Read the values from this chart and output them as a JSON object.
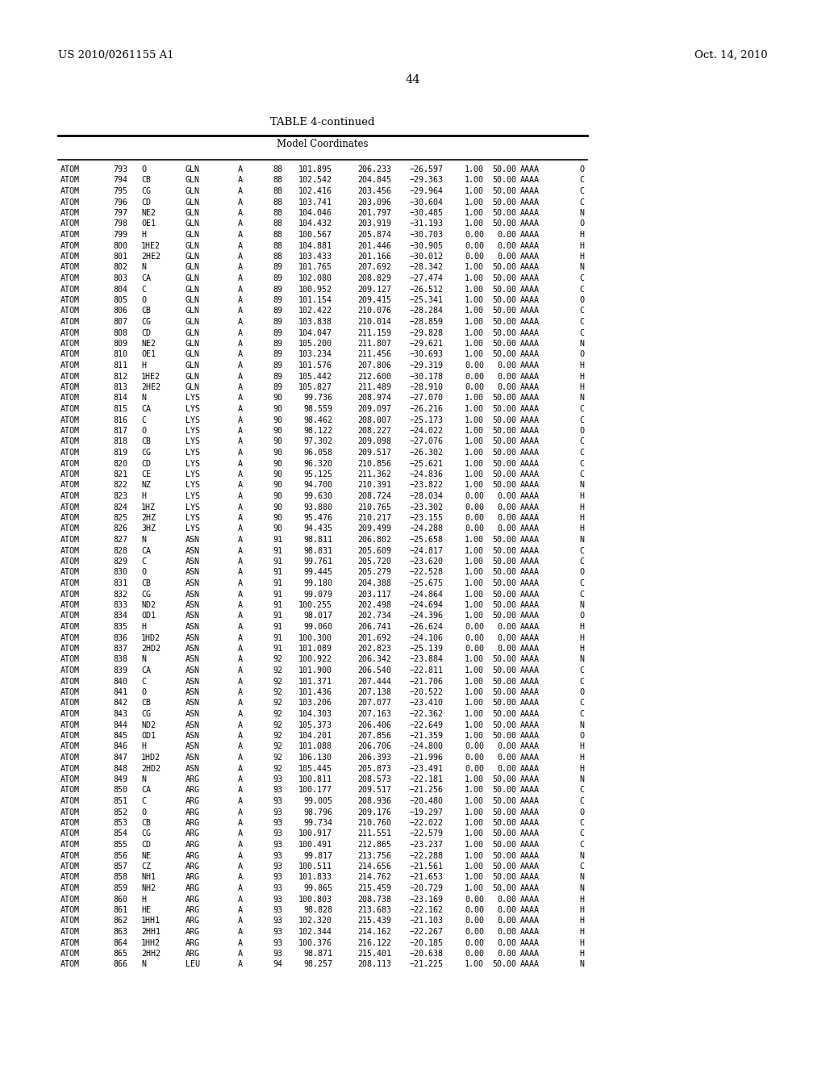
{
  "header_left": "US 2010/0261155 A1",
  "header_right": "Oct. 14, 2010",
  "page_number": "44",
  "table_title": "TABLE 4-continued",
  "table_subtitle": "Model Coordinates",
  "rows": [
    [
      "ATOM",
      "793",
      "O",
      "GLN",
      "A",
      "88",
      "101.895",
      "206.233",
      "−26.597",
      "1.00",
      "50.00",
      "AAAA",
      "O"
    ],
    [
      "ATOM",
      "794",
      "CB",
      "GLN",
      "A",
      "88",
      "102.542",
      "204.845",
      "−29.363",
      "1.00",
      "50.00",
      "AAAA",
      "C"
    ],
    [
      "ATOM",
      "795",
      "CG",
      "GLN",
      "A",
      "88",
      "102.416",
      "203.456",
      "−29.964",
      "1.00",
      "50.00",
      "AAAA",
      "C"
    ],
    [
      "ATOM",
      "796",
      "CD",
      "GLN",
      "A",
      "88",
      "103.741",
      "203.096",
      "−30.604",
      "1.00",
      "50.00",
      "AAAA",
      "C"
    ],
    [
      "ATOM",
      "797",
      "NE2",
      "GLN",
      "A",
      "88",
      "104.046",
      "201.797",
      "−30.485",
      "1.00",
      "50.00",
      "AAAA",
      "N"
    ],
    [
      "ATOM",
      "798",
      "OE1",
      "GLN",
      "A",
      "88",
      "104.432",
      "203.919",
      "−31.193",
      "1.00",
      "50.00",
      "AAAA",
      "O"
    ],
    [
      "ATOM",
      "799",
      "H",
      "GLN",
      "A",
      "88",
      "100.567",
      "205.874",
      "−30.703",
      "0.00",
      "0.00",
      "AAAA",
      "H"
    ],
    [
      "ATOM",
      "800",
      "1HE2",
      "GLN",
      "A",
      "88",
      "104.881",
      "201.446",
      "−30.905",
      "0.00",
      "0.00",
      "AAAA",
      "H"
    ],
    [
      "ATOM",
      "801",
      "2HE2",
      "GLN",
      "A",
      "88",
      "103.433",
      "201.166",
      "−30.012",
      "0.00",
      "0.00",
      "AAAA",
      "H"
    ],
    [
      "ATOM",
      "802",
      "N",
      "GLN",
      "A",
      "89",
      "101.765",
      "207.692",
      "−28.342",
      "1.00",
      "50.00",
      "AAAA",
      "N"
    ],
    [
      "ATOM",
      "803",
      "CA",
      "GLN",
      "A",
      "89",
      "102.080",
      "208.829",
      "−27.474",
      "1.00",
      "50.00",
      "AAAA",
      "C"
    ],
    [
      "ATOM",
      "804",
      "C",
      "GLN",
      "A",
      "89",
      "100.952",
      "209.127",
      "−26.512",
      "1.00",
      "50.00",
      "AAAA",
      "C"
    ],
    [
      "ATOM",
      "805",
      "O",
      "GLN",
      "A",
      "89",
      "101.154",
      "209.415",
      "−25.341",
      "1.00",
      "50.00",
      "AAAA",
      "O"
    ],
    [
      "ATOM",
      "806",
      "CB",
      "GLN",
      "A",
      "89",
      "102.422",
      "210.076",
      "−28.284",
      "1.00",
      "50.00",
      "AAAA",
      "C"
    ],
    [
      "ATOM",
      "807",
      "CG",
      "GLN",
      "A",
      "89",
      "103.838",
      "210.014",
      "−28.859",
      "1.00",
      "50.00",
      "AAAA",
      "C"
    ],
    [
      "ATOM",
      "808",
      "CD",
      "GLN",
      "A",
      "89",
      "104.047",
      "211.159",
      "−29.828",
      "1.00",
      "50.00",
      "AAAA",
      "C"
    ],
    [
      "ATOM",
      "809",
      "NE2",
      "GLN",
      "A",
      "89",
      "105.200",
      "211.807",
      "−29.621",
      "1.00",
      "50.00",
      "AAAA",
      "N"
    ],
    [
      "ATOM",
      "810",
      "OE1",
      "GLN",
      "A",
      "89",
      "103.234",
      "211.456",
      "−30.693",
      "1.00",
      "50.00",
      "AAAA",
      "O"
    ],
    [
      "ATOM",
      "811",
      "H",
      "GLN",
      "A",
      "89",
      "101.576",
      "207.806",
      "−29.319",
      "0.00",
      "0.00",
      "AAAA",
      "H"
    ],
    [
      "ATOM",
      "812",
      "1HE2",
      "GLN",
      "A",
      "89",
      "105.442",
      "212.600",
      "−30.178",
      "0.00",
      "0.00",
      "AAAA",
      "H"
    ],
    [
      "ATOM",
      "813",
      "2HE2",
      "GLN",
      "A",
      "89",
      "105.827",
      "211.489",
      "−28.910",
      "0.00",
      "0.00",
      "AAAA",
      "H"
    ],
    [
      "ATOM",
      "814",
      "N",
      "LYS",
      "A",
      "90",
      "99.736",
      "208.974",
      "−27.070",
      "1.00",
      "50.00",
      "AAAA",
      "N"
    ],
    [
      "ATOM",
      "815",
      "CA",
      "LYS",
      "A",
      "90",
      "98.559",
      "209.097",
      "−26.216",
      "1.00",
      "50.00",
      "AAAA",
      "C"
    ],
    [
      "ATOM",
      "816",
      "C",
      "LYS",
      "A",
      "90",
      "98.462",
      "208.007",
      "−25.173",
      "1.00",
      "50.00",
      "AAAA",
      "C"
    ],
    [
      "ATOM",
      "817",
      "O",
      "LYS",
      "A",
      "90",
      "98.122",
      "208.227",
      "−24.022",
      "1.00",
      "50.00",
      "AAAA",
      "O"
    ],
    [
      "ATOM",
      "818",
      "CB",
      "LYS",
      "A",
      "90",
      "97.302",
      "209.098",
      "−27.076",
      "1.00",
      "50.00",
      "AAAA",
      "C"
    ],
    [
      "ATOM",
      "819",
      "CG",
      "LYS",
      "A",
      "90",
      "96.058",
      "209.517",
      "−26.302",
      "1.00",
      "50.00",
      "AAAA",
      "C"
    ],
    [
      "ATOM",
      "820",
      "CD",
      "LYS",
      "A",
      "90",
      "96.320",
      "210.856",
      "−25.621",
      "1.00",
      "50.00",
      "AAAA",
      "C"
    ],
    [
      "ATOM",
      "821",
      "CE",
      "LYS",
      "A",
      "90",
      "95.125",
      "211.362",
      "−24.836",
      "1.00",
      "50.00",
      "AAAA",
      "C"
    ],
    [
      "ATOM",
      "822",
      "NZ",
      "LYS",
      "A",
      "90",
      "94.700",
      "210.391",
      "−23.822",
      "1.00",
      "50.00",
      "AAAA",
      "N"
    ],
    [
      "ATOM",
      "823",
      "H",
      "LYS",
      "A",
      "90",
      "99.630",
      "208.724",
      "−28.034",
      "0.00",
      "0.00",
      "AAAA",
      "H"
    ],
    [
      "ATOM",
      "824",
      "1HZ",
      "LYS",
      "A",
      "90",
      "93.880",
      "210.765",
      "−23.302",
      "0.00",
      "0.00",
      "AAAA",
      "H"
    ],
    [
      "ATOM",
      "825",
      "2HZ",
      "LYS",
      "A",
      "90",
      "95.476",
      "210.217",
      "−23.155",
      "0.00",
      "0.00",
      "AAAA",
      "H"
    ],
    [
      "ATOM",
      "826",
      "3HZ",
      "LYS",
      "A",
      "90",
      "94.435",
      "209.499",
      "−24.288",
      "0.00",
      "0.00",
      "AAAA",
      "H"
    ],
    [
      "ATOM",
      "827",
      "N",
      "ASN",
      "A",
      "91",
      "98.811",
      "206.802",
      "−25.658",
      "1.00",
      "50.00",
      "AAAA",
      "N"
    ],
    [
      "ATOM",
      "828",
      "CA",
      "ASN",
      "A",
      "91",
      "98.831",
      "205.609",
      "−24.817",
      "1.00",
      "50.00",
      "AAAA",
      "C"
    ],
    [
      "ATOM",
      "829",
      "C",
      "ASN",
      "A",
      "91",
      "99.761",
      "205.720",
      "−23.620",
      "1.00",
      "50.00",
      "AAAA",
      "C"
    ],
    [
      "ATOM",
      "830",
      "O",
      "ASN",
      "A",
      "91",
      "99.445",
      "205.279",
      "−22.528",
      "1.00",
      "50.00",
      "AAAA",
      "O"
    ],
    [
      "ATOM",
      "831",
      "CB",
      "ASN",
      "A",
      "91",
      "99.180",
      "204.388",
      "−25.675",
      "1.00",
      "50.00",
      "AAAA",
      "C"
    ],
    [
      "ATOM",
      "832",
      "CG",
      "ASN",
      "A",
      "91",
      "99.079",
      "203.117",
      "−24.864",
      "1.00",
      "50.00",
      "AAAA",
      "C"
    ],
    [
      "ATOM",
      "833",
      "ND2",
      "ASN",
      "A",
      "91",
      "100.255",
      "202.498",
      "−24.694",
      "1.00",
      "50.00",
      "AAAA",
      "N"
    ],
    [
      "ATOM",
      "834",
      "OD1",
      "ASN",
      "A",
      "91",
      "98.017",
      "202.734",
      "−24.396",
      "1.00",
      "50.00",
      "AAAA",
      "O"
    ],
    [
      "ATOM",
      "835",
      "H",
      "ASN",
      "A",
      "91",
      "99.060",
      "206.741",
      "−26.624",
      "0.00",
      "0.00",
      "AAAA",
      "H"
    ],
    [
      "ATOM",
      "836",
      "1HD2",
      "ASN",
      "A",
      "91",
      "100.300",
      "201.692",
      "−24.106",
      "0.00",
      "0.00",
      "AAAA",
      "H"
    ],
    [
      "ATOM",
      "837",
      "2HD2",
      "ASN",
      "A",
      "91",
      "101.089",
      "202.823",
      "−25.139",
      "0.00",
      "0.00",
      "AAAA",
      "H"
    ],
    [
      "ATOM",
      "838",
      "N",
      "ASN",
      "A",
      "92",
      "100.922",
      "206.342",
      "−23.884",
      "1.00",
      "50.00",
      "AAAA",
      "N"
    ],
    [
      "ATOM",
      "839",
      "CA",
      "ASN",
      "A",
      "92",
      "101.900",
      "206.540",
      "−22.811",
      "1.00",
      "50.00",
      "AAAA",
      "C"
    ],
    [
      "ATOM",
      "840",
      "C",
      "ASN",
      "A",
      "92",
      "101.371",
      "207.444",
      "−21.706",
      "1.00",
      "50.00",
      "AAAA",
      "C"
    ],
    [
      "ATOM",
      "841",
      "O",
      "ASN",
      "A",
      "92",
      "101.436",
      "207.138",
      "−20.522",
      "1.00",
      "50.00",
      "AAAA",
      "O"
    ],
    [
      "ATOM",
      "842",
      "CB",
      "ASN",
      "A",
      "92",
      "103.206",
      "207.077",
      "−23.410",
      "1.00",
      "50.00",
      "AAAA",
      "C"
    ],
    [
      "ATOM",
      "843",
      "CG",
      "ASN",
      "A",
      "92",
      "104.303",
      "207.163",
      "−22.362",
      "1.00",
      "50.00",
      "AAAA",
      "C"
    ],
    [
      "ATOM",
      "844",
      "ND2",
      "ASN",
      "A",
      "92",
      "105.373",
      "206.406",
      "−22.649",
      "1.00",
      "50.00",
      "AAAA",
      "N"
    ],
    [
      "ATOM",
      "845",
      "OD1",
      "ASN",
      "A",
      "92",
      "104.201",
      "207.856",
      "−21.359",
      "1.00",
      "50.00",
      "AAAA",
      "O"
    ],
    [
      "ATOM",
      "846",
      "H",
      "ASN",
      "A",
      "92",
      "101.088",
      "206.706",
      "−24.800",
      "0.00",
      "0.00",
      "AAAA",
      "H"
    ],
    [
      "ATOM",
      "847",
      "1HD2",
      "ASN",
      "A",
      "92",
      "106.130",
      "206.393",
      "−21.996",
      "0.00",
      "0.00",
      "AAAA",
      "H"
    ],
    [
      "ATOM",
      "848",
      "2HD2",
      "ASN",
      "A",
      "92",
      "105.445",
      "205.873",
      "−23.491",
      "0.00",
      "0.00",
      "AAAA",
      "H"
    ],
    [
      "ATOM",
      "849",
      "N",
      "ARG",
      "A",
      "93",
      "100.811",
      "208.573",
      "−22.181",
      "1.00",
      "50.00",
      "AAAA",
      "N"
    ],
    [
      "ATOM",
      "850",
      "CA",
      "ARG",
      "A",
      "93",
      "100.177",
      "209.517",
      "−21.256",
      "1.00",
      "50.00",
      "AAAA",
      "C"
    ],
    [
      "ATOM",
      "851",
      "C",
      "ARG",
      "A",
      "93",
      "99.005",
      "208.936",
      "−20.480",
      "1.00",
      "50.00",
      "AAAA",
      "C"
    ],
    [
      "ATOM",
      "852",
      "O",
      "ARG",
      "A",
      "93",
      "98.796",
      "209.176",
      "−19.297",
      "1.00",
      "50.00",
      "AAAA",
      "O"
    ],
    [
      "ATOM",
      "853",
      "CB",
      "ARG",
      "A",
      "93",
      "99.734",
      "210.760",
      "−22.022",
      "1.00",
      "50.00",
      "AAAA",
      "C"
    ],
    [
      "ATOM",
      "854",
      "CG",
      "ARG",
      "A",
      "93",
      "100.917",
      "211.551",
      "−22.579",
      "1.00",
      "50.00",
      "AAAA",
      "C"
    ],
    [
      "ATOM",
      "855",
      "CD",
      "ARG",
      "A",
      "93",
      "100.491",
      "212.865",
      "−23.237",
      "1.00",
      "50.00",
      "AAAA",
      "C"
    ],
    [
      "ATOM",
      "856",
      "NE",
      "ARG",
      "A",
      "93",
      "99.817",
      "213.756",
      "−22.288",
      "1.00",
      "50.00",
      "AAAA",
      "N"
    ],
    [
      "ATOM",
      "857",
      "CZ",
      "ARG",
      "A",
      "93",
      "100.511",
      "214.656",
      "−21.561",
      "1.00",
      "50.00",
      "AAAA",
      "C"
    ],
    [
      "ATOM",
      "858",
      "NH1",
      "ARG",
      "A",
      "93",
      "101.833",
      "214.762",
      "−21.653",
      "1.00",
      "50.00",
      "AAAA",
      "N"
    ],
    [
      "ATOM",
      "859",
      "NH2",
      "ARG",
      "A",
      "93",
      "99.865",
      "215.459",
      "−20.729",
      "1.00",
      "50.00",
      "AAAA",
      "N"
    ],
    [
      "ATOM",
      "860",
      "H",
      "ARG",
      "A",
      "93",
      "100.803",
      "208.738",
      "−23.169",
      "0.00",
      "0.00",
      "AAAA",
      "H"
    ],
    [
      "ATOM",
      "861",
      "HE",
      "ARG",
      "A",
      "93",
      "98.828",
      "213.683",
      "−22.162",
      "0.00",
      "0.00",
      "AAAA",
      "H"
    ],
    [
      "ATOM",
      "862",
      "1HH1",
      "ARG",
      "A",
      "93",
      "102.320",
      "215.439",
      "−21.103",
      "0.00",
      "0.00",
      "AAAA",
      "H"
    ],
    [
      "ATOM",
      "863",
      "2HH1",
      "ARG",
      "A",
      "93",
      "102.344",
      "214.162",
      "−22.267",
      "0.00",
      "0.00",
      "AAAA",
      "H"
    ],
    [
      "ATOM",
      "864",
      "1HH2",
      "ARG",
      "A",
      "93",
      "100.376",
      "216.122",
      "−20.185",
      "0.00",
      "0.00",
      "AAAA",
      "H"
    ],
    [
      "ATOM",
      "865",
      "2HH2",
      "ARG",
      "A",
      "93",
      "98.871",
      "215.401",
      "−20.638",
      "0.00",
      "0.00",
      "AAAA",
      "H"
    ],
    [
      "ATOM",
      "866",
      "N",
      "LEU",
      "A",
      "94",
      "98.257",
      "208.113",
      "−21.225",
      "1.00",
      "50.00",
      "AAAA",
      "N"
    ]
  ],
  "bg_color": "#ffffff",
  "text_color": "#000000",
  "font_size": 7.2,
  "header_font_size": 9.5,
  "title_font_size": 9.5,
  "subtitle_font_size": 8.5
}
